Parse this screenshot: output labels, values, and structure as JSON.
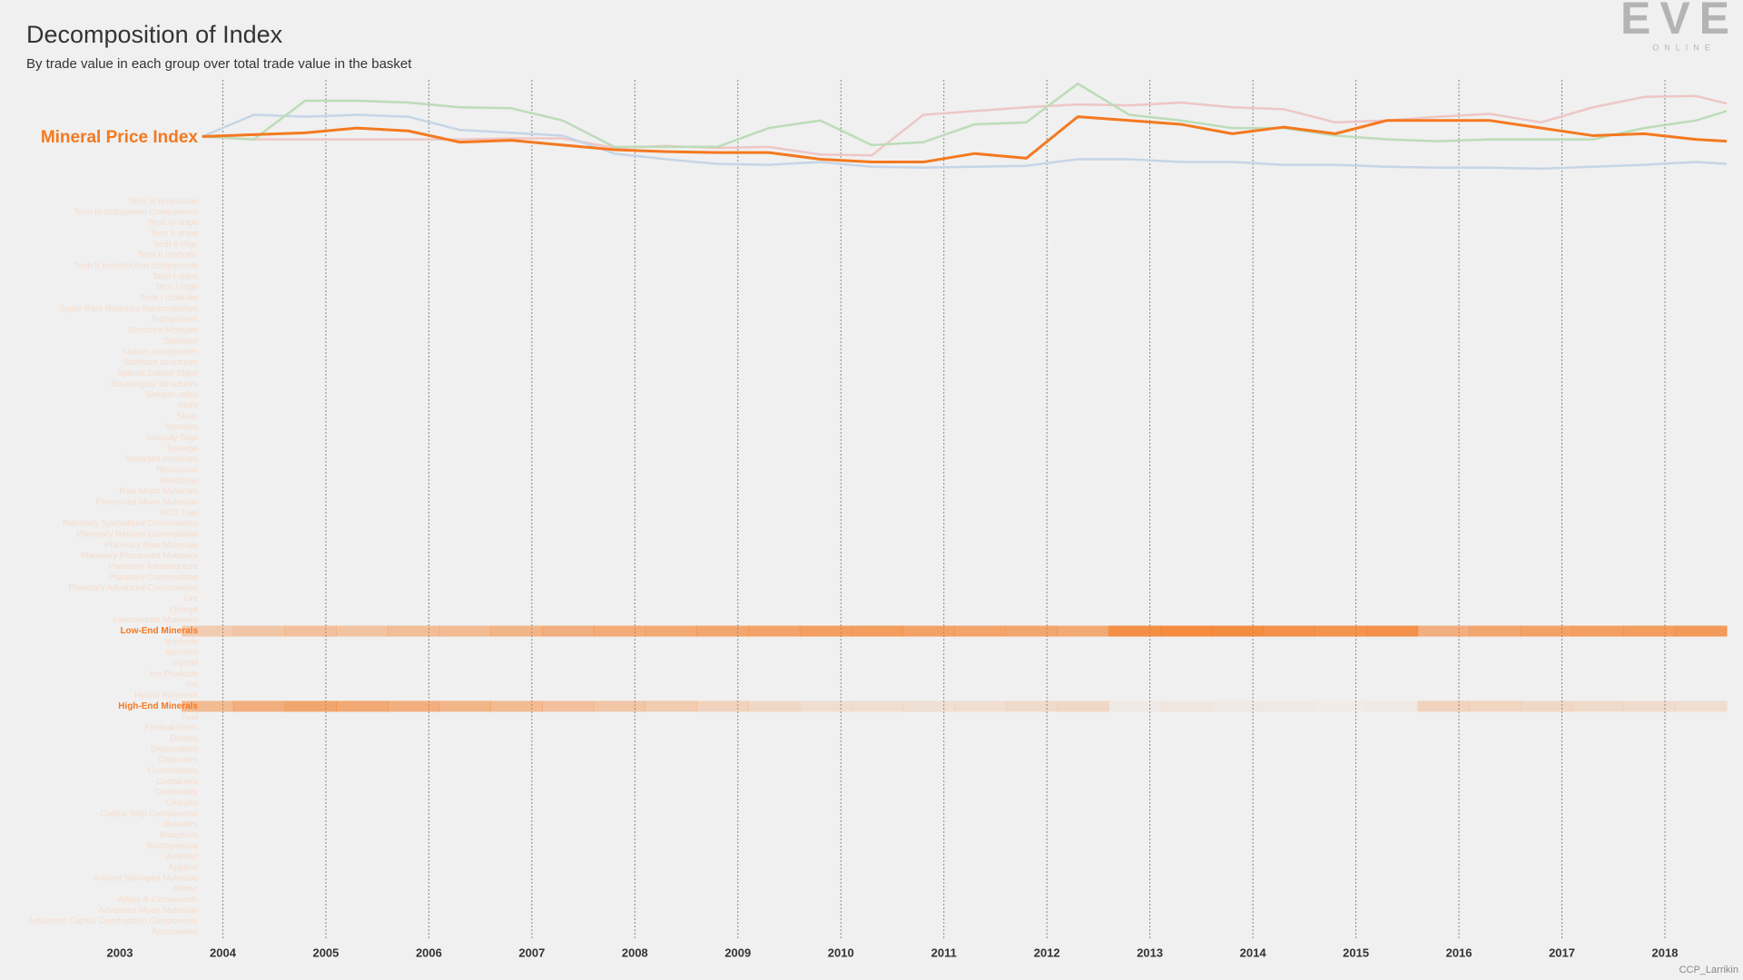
{
  "logo": {
    "title": "EVE",
    "subtitle": "ONLINE"
  },
  "credit": "CCP_Larrikin",
  "chart_data": [
    {
      "type": "line",
      "title": "Decomposition of Index",
      "subtitle": "By trade value in each group over total trade value in the basket",
      "x": [
        2003.8,
        2004.3,
        2004.8,
        2005.3,
        2005.8,
        2006.3,
        2006.8,
        2007.3,
        2007.8,
        2008.3,
        2008.8,
        2009.3,
        2009.8,
        2010.3,
        2010.8,
        2011.3,
        2011.8,
        2012.3,
        2012.8,
        2013.3,
        2013.8,
        2014.3,
        2014.8,
        2015.3,
        2015.8,
        2016.3,
        2016.8,
        2017.3,
        2017.8,
        2018.3,
        2018.6
      ],
      "xlim": [
        2003,
        2018
      ],
      "ylim": [
        0,
        100
      ],
      "series": [
        {
          "name": "Mineral Price Index",
          "color": "#f47920",
          "values": [
            38,
            40,
            42,
            47,
            44,
            32,
            34,
            29,
            24,
            22,
            21,
            21,
            14,
            11,
            11,
            20,
            15,
            59,
            55,
            51,
            41,
            48,
            41,
            55,
            55,
            55,
            47,
            39,
            41,
            35,
            33
          ]
        },
        {
          "color": "#bcdcb8",
          "values": [
            38,
            35,
            76,
            76,
            74,
            69,
            68,
            55,
            27,
            27,
            27,
            47,
            55,
            29,
            32,
            51,
            53,
            94,
            61,
            55,
            47,
            47,
            39,
            35,
            33,
            35,
            35,
            35,
            47,
            55,
            65
          ]
        },
        {
          "color": "#c6d5e6",
          "values": [
            38,
            61,
            59,
            61,
            59,
            45,
            42,
            39,
            20,
            14,
            9,
            8,
            11,
            6,
            5,
            6,
            7,
            14,
            14,
            11,
            11,
            8,
            8,
            6,
            5,
            5,
            4,
            6,
            8,
            11,
            9
          ]
        },
        {
          "color": "#eec6c6",
          "values": [
            38,
            35,
            35,
            35,
            35,
            35,
            36,
            36,
            26,
            28,
            26,
            27,
            19,
            18,
            61,
            65,
            69,
            72,
            71,
            74,
            69,
            67,
            53,
            55,
            59,
            62,
            53,
            69,
            80,
            81,
            73
          ]
        }
      ]
    },
    {
      "type": "heatmap",
      "color": "#f47920",
      "color_range": [
        0,
        100
      ],
      "xlim": [
        2003,
        2018
      ],
      "grid": true,
      "xticks": [
        2003,
        2004,
        2005,
        2006,
        2007,
        2008,
        2009,
        2010,
        2011,
        2012,
        2013,
        2014,
        2015,
        2016,
        2017,
        2018
      ],
      "bins": [
        2003.6,
        2004.1,
        2004.6,
        2005.1,
        2005.6,
        2006.1,
        2006.6,
        2007.1,
        2007.6,
        2008.1,
        2008.6,
        2009.1,
        2009.6,
        2010.1,
        2010.6,
        2011.1,
        2011.6,
        2012.1,
        2012.6,
        2013.1,
        2013.6,
        2014.1,
        2014.6,
        2015.1,
        2015.6,
        2016.1,
        2016.6,
        2017.1,
        2017.6,
        2018.1,
        2018.6
      ],
      "rows": [
        {
          "label": "Tech III propulsion"
        },
        {
          "label": "Tech III Subsystem Components"
        },
        {
          "label": "Tech III ships"
        },
        {
          "label": "Tech II ships"
        },
        {
          "label": "Tech II Rigs"
        },
        {
          "label": "Tech II modules"
        },
        {
          "label": "Tech II construction components"
        },
        {
          "label": "Tech I ships"
        },
        {
          "label": "Tech I Rigs"
        },
        {
          "label": "Tech I modules"
        },
        {
          "label": "Super Rare Reduced Nanomaterials"
        },
        {
          "label": "Subsystems"
        },
        {
          "label": "Structure Modules"
        },
        {
          "label": "Starbase"
        },
        {
          "label": "Station components"
        },
        {
          "label": "Starbase structures"
        },
        {
          "label": "Special Edition Ships"
        },
        {
          "label": "Sovereignty Structures"
        },
        {
          "label": "Sleeper relics"
        },
        {
          "label": "Skills"
        },
        {
          "label": "Skins"
        },
        {
          "label": "Services"
        },
        {
          "label": "Security Tags"
        },
        {
          "label": "Salvage"
        },
        {
          "label": "Salvaged materials"
        },
        {
          "label": "Resources"
        },
        {
          "label": "Reactions"
        },
        {
          "label": "Raw Moon Materials"
        },
        {
          "label": "Processed Moon Materials"
        },
        {
          "label": "POS Fuel"
        },
        {
          "label": "Planetary Specialized Commodities"
        },
        {
          "label": "Planetary Refined Commodities"
        },
        {
          "label": "Planetary Raw Materials"
        },
        {
          "label": "Planetary Processed Materials"
        },
        {
          "label": "Planetary Infrastructure"
        },
        {
          "label": "Planetary Commodities"
        },
        {
          "label": "Planetary Advanced Commodities"
        },
        {
          "label": "Ore"
        },
        {
          "label": "Omega"
        },
        {
          "label": "Intermediate Materials"
        },
        {
          "label": "Low-End Minerals",
          "values": [
            30,
            35,
            40,
            38,
            42,
            45,
            50,
            55,
            58,
            60,
            62,
            65,
            68,
            70,
            66,
            64,
            62,
            60,
            82,
            85,
            84,
            80,
            78,
            80,
            55,
            62,
            66,
            68,
            70,
            72
          ]
        },
        {
          "label": "Implants"
        },
        {
          "label": "Injectors"
        },
        {
          "label": "Hybrid"
        },
        {
          "label": "Ice Products"
        },
        {
          "label": "Ice"
        },
        {
          "label": "Hybrid Polymers"
        },
        {
          "label": "High-End Minerals",
          "values": [
            45,
            55,
            62,
            60,
            55,
            50,
            45,
            40,
            35,
            30,
            25,
            20,
            15,
            15,
            14,
            15,
            18,
            20,
            5,
            8,
            6,
            5,
            4,
            5,
            25,
            22,
            20,
            18,
            16,
            15
          ]
        },
        {
          "label": "Fuel"
        },
        {
          "label": "Festival Items"
        },
        {
          "label": "Drones"
        },
        {
          "label": "Deployables"
        },
        {
          "label": "Datacores"
        },
        {
          "label": "Commodities"
        },
        {
          "label": "Containers"
        },
        {
          "label": "Commodity"
        },
        {
          "label": "Charges"
        },
        {
          "label": "Capital Ship Components"
        },
        {
          "label": "Boosters"
        },
        {
          "label": "Blueprints"
        },
        {
          "label": "Biochemicals"
        },
        {
          "label": "Asteroid"
        },
        {
          "label": "Apparel"
        },
        {
          "label": "Ancient Salvaged Materials"
        },
        {
          "label": "Ammo"
        },
        {
          "label": "Alloys & Compounds"
        },
        {
          "label": "Advanced Moon Materials"
        },
        {
          "label": "Advanced Capital Construction Components"
        },
        {
          "label": "Accessories"
        }
      ]
    }
  ]
}
